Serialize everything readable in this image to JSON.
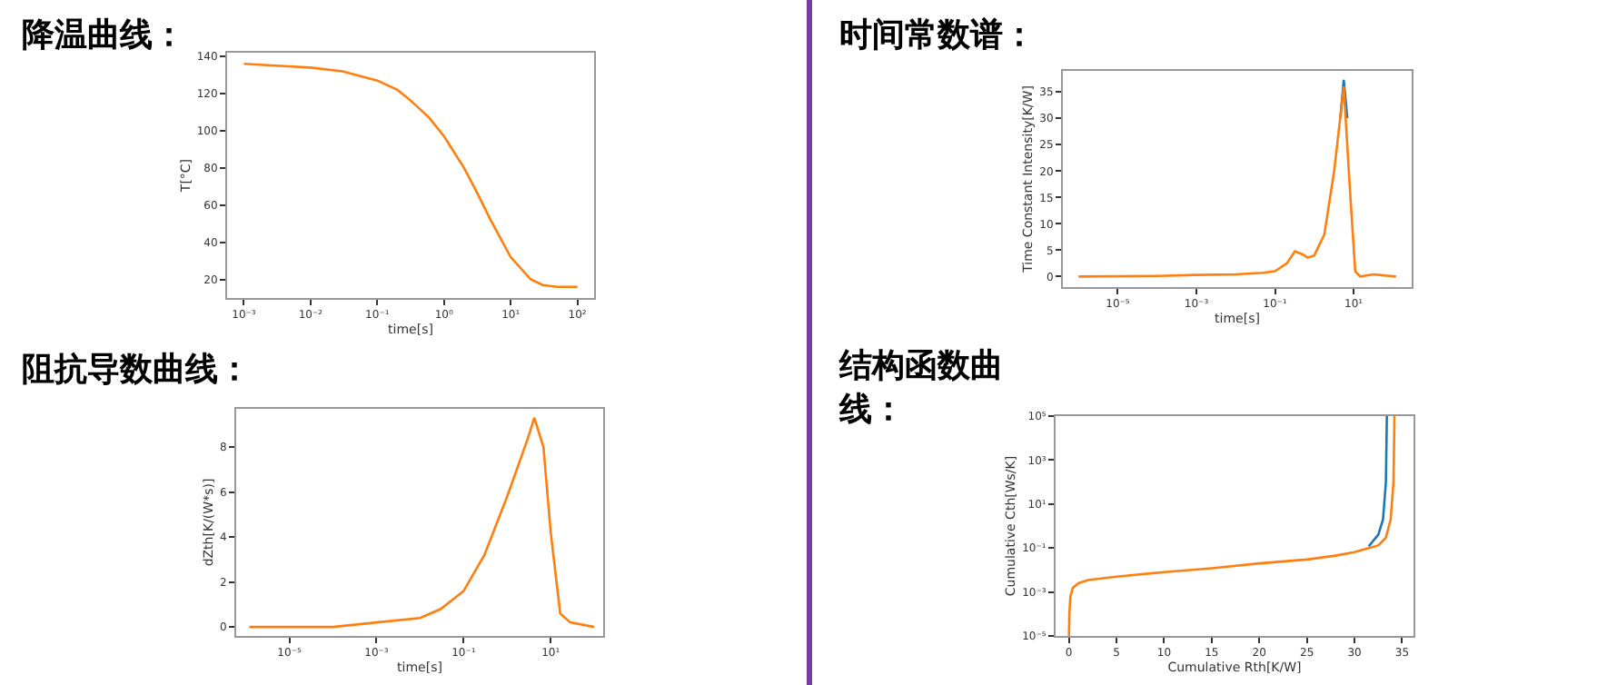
{
  "chart_data": [
    {
      "type": "line",
      "title": "降温曲线：",
      "xlabel": "time[s]",
      "ylabel": "T[°C]",
      "log": "x",
      "grid": false,
      "marker": "none",
      "line_style": "solid",
      "xlim": [
        0.00056,
        178
      ],
      "xticks": [
        {
          "value": 0.001,
          "label": "10⁻³"
        },
        {
          "value": 0.01,
          "label": "10⁻²"
        },
        {
          "value": 0.1,
          "label": "10⁻¹"
        },
        {
          "value": 1,
          "label": "10⁰"
        },
        {
          "value": 10,
          "label": "10¹"
        },
        {
          "value": 100,
          "label": "10²"
        }
      ],
      "ylim": [
        10,
        142
      ],
      "yticks": [
        20,
        40,
        60,
        80,
        100,
        120,
        140
      ],
      "series": [
        {
          "color": "#ff7f0e",
          "x": [
            0.001,
            0.003,
            0.01,
            0.03,
            0.1,
            0.2,
            0.3,
            0.6,
            1,
            2,
            3,
            5,
            10,
            20,
            30,
            50,
            100
          ],
          "values": [
            136,
            135,
            134,
            132,
            127,
            122,
            117,
            107,
            97,
            80,
            68,
            52,
            32,
            20,
            17,
            16,
            16
          ]
        }
      ]
    },
    {
      "type": "line",
      "title": "时间常数谱：",
      "xlabel": "time[s]",
      "ylabel": "Time Constant Intensity[K/W]",
      "log": "x",
      "grid": false,
      "marker": "none",
      "line_style": "solid",
      "xlim": [
        4e-07,
        300
      ],
      "xticks": [
        {
          "value": 1e-05,
          "label": "10⁻⁵"
        },
        {
          "value": 0.001,
          "label": "10⁻³"
        },
        {
          "value": 0.1,
          "label": "10⁻¹"
        },
        {
          "value": 10,
          "label": "10¹"
        }
      ],
      "ylim": [
        -2,
        39
      ],
      "yticks": [
        0,
        5,
        10,
        15,
        20,
        25,
        30,
        35
      ],
      "series": [
        {
          "color": "#1f77b4",
          "x": [
            4.6,
            5.6,
            6.9
          ],
          "values": [
            30,
            37.3,
            30
          ]
        },
        {
          "color": "#ff7f0e",
          "x": [
            1e-06,
            0.0001,
            0.001,
            0.01,
            0.05,
            0.1,
            0.2,
            0.32,
            0.5,
            0.68,
            1,
            1.8,
            3.2,
            5.6,
            8.3,
            11,
            14.7,
            21,
            32,
            120
          ],
          "values": [
            0,
            0.1,
            0.3,
            0.4,
            0.7,
            1,
            2.5,
            4.8,
            4.2,
            3.6,
            4,
            8,
            20,
            36,
            15,
            1,
            0,
            0.2,
            0.4,
            0
          ]
        }
      ]
    },
    {
      "type": "line",
      "title": "阻抗导数曲线：",
      "xlabel": "time[s]",
      "ylabel": "dZth[K/(W*s)]",
      "log": "x",
      "grid": false,
      "marker": "none",
      "line_style": "solid",
      "xlim": [
        6e-07,
        160
      ],
      "xticks": [
        {
          "value": 1e-05,
          "label": "10⁻⁵"
        },
        {
          "value": 0.001,
          "label": "10⁻³"
        },
        {
          "value": 0.1,
          "label": "10⁻¹"
        },
        {
          "value": 10,
          "label": "10¹"
        }
      ],
      "ylim": [
        -0.4,
        9.7
      ],
      "yticks": [
        0,
        2,
        4,
        6,
        8
      ],
      "series": [
        {
          "color": "#ff7f0e",
          "x": [
            1.2e-06,
            0.0001,
            0.001,
            0.01,
            0.03,
            0.1,
            0.3,
            1,
            3,
            4.2,
            6.8,
            10,
            16.5,
            28,
            100
          ],
          "values": [
            0,
            0,
            0.2,
            0.4,
            0.8,
            1.6,
            3.2,
            5.8,
            8.4,
            9.3,
            8,
            4.2,
            0.6,
            0.2,
            0
          ]
        }
      ]
    },
    {
      "type": "line",
      "title": "结构函数曲线：",
      "xlabel": "Cumulative Rth[K/W]",
      "ylabel": "Cumulative Cth[Ws/K]",
      "log": "y",
      "grid": false,
      "marker": "none",
      "line_style": "solid",
      "xlim": [
        -1.4,
        36.2
      ],
      "xticks": [
        0,
        5,
        10,
        15,
        20,
        25,
        30,
        35
      ],
      "ylim": [
        1e-05,
        100000
      ],
      "yticks": [
        {
          "value": 1e-05,
          "label": "10⁻⁵"
        },
        {
          "value": 0.001,
          "label": "10⁻³"
        },
        {
          "value": 0.1,
          "label": "10⁻¹"
        },
        {
          "value": 10,
          "label": "10¹"
        },
        {
          "value": 1000,
          "label": "10³"
        },
        {
          "value": 100000,
          "label": "10⁵"
        }
      ],
      "series": [
        {
          "color": "#1f77b4",
          "x": [
            31.5,
            32.5,
            33,
            33.3,
            33.4
          ],
          "values": [
            0.12,
            0.4,
            2,
            100,
            100000
          ]
        },
        {
          "color": "#ff7f0e",
          "x": [
            0,
            0.05,
            0.15,
            0.4,
            1,
            2,
            5,
            10,
            15,
            20,
            25,
            28,
            30,
            31.5,
            32.5,
            33.3,
            33.8,
            34.1,
            34.2
          ],
          "values": [
            1e-05,
            0.0001,
            0.0006,
            0.0015,
            0.0025,
            0.0035,
            0.005,
            0.008,
            0.012,
            0.02,
            0.03,
            0.045,
            0.065,
            0.1,
            0.13,
            0.3,
            2,
            100,
            100000
          ]
        }
      ]
    }
  ]
}
